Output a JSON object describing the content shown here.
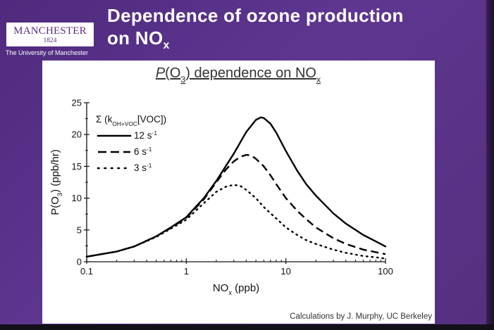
{
  "header": {
    "title_line1": "Dependence of ozone production",
    "title_line2_main": "on NO",
    "title_line2_sub": "x"
  },
  "logo": {
    "name": "MANCHESTER",
    "year": "1824",
    "subtitle": "The University of Manchester"
  },
  "chart_data": {
    "type": "line",
    "title": "P(O3) dependence on NOx",
    "xlabel": "NOx (ppb)",
    "ylabel": "P(O3) (ppb/hr)",
    "xscale": "log",
    "xlim": [
      0.1,
      100
    ],
    "ylim": [
      0,
      25
    ],
    "x_ticks": [
      0.1,
      1,
      10,
      100
    ],
    "x_tick_labels": [
      "0.1",
      "1",
      "10",
      "100"
    ],
    "y_ticks": [
      0,
      5,
      10,
      15,
      20,
      25
    ],
    "y_tick_labels": [
      "0",
      "5",
      "10",
      "15",
      "20",
      "25"
    ],
    "grid": false,
    "legend_position": "top-left",
    "legend_title": "Σ (kOH+VOC[VOC])",
    "series": [
      {
        "name": "12 s-1",
        "style": "solid",
        "x": [
          0.1,
          0.2,
          0.3,
          0.5,
          0.7,
          1,
          1.5,
          2,
          3,
          4,
          5,
          5.6,
          6,
          7,
          8,
          10,
          13,
          16,
          20,
          30,
          40,
          60,
          80,
          100
        ],
        "y": [
          0.8,
          1.6,
          2.4,
          4.0,
          5.4,
          7.0,
          10.0,
          12.7,
          17.0,
          20.4,
          22.3,
          22.7,
          22.6,
          21.7,
          20.3,
          17.4,
          14.3,
          12.2,
          10.4,
          7.6,
          6.0,
          4.2,
          3.2,
          2.4
        ]
      },
      {
        "name": "6 s-1",
        "style": "dashed",
        "x": [
          0.1,
          0.2,
          0.3,
          0.5,
          0.7,
          1,
          1.5,
          2,
          2.5,
          3,
          3.5,
          4,
          4.5,
          5,
          6,
          7,
          8,
          10,
          13,
          16,
          20,
          30,
          40,
          60,
          80,
          100
        ],
        "y": [
          0.8,
          1.6,
          2.4,
          4.0,
          5.3,
          6.9,
          9.8,
          12.5,
          14.5,
          15.8,
          16.5,
          16.8,
          16.7,
          16.2,
          15.0,
          13.6,
          12.2,
          10.0,
          8.0,
          6.7,
          5.4,
          3.7,
          2.8,
          1.9,
          1.5,
          1.2
        ]
      },
      {
        "name": "3 s-1",
        "style": "dotted",
        "x": [
          0.1,
          0.2,
          0.3,
          0.5,
          0.7,
          1,
          1.3,
          1.6,
          2,
          2.5,
          3,
          3.5,
          4,
          5,
          6,
          8,
          10,
          13,
          16,
          20,
          30,
          40,
          60,
          80,
          100
        ],
        "y": [
          0.8,
          1.6,
          2.4,
          3.9,
          5.2,
          6.6,
          8.3,
          9.6,
          11.0,
          11.8,
          12.1,
          11.9,
          11.3,
          10.0,
          8.6,
          6.8,
          5.4,
          4.2,
          3.4,
          2.8,
          1.9,
          1.4,
          0.9,
          0.7,
          0.5
        ]
      }
    ]
  },
  "credit": "Calculations by J. Murphy, UC Berkeley"
}
